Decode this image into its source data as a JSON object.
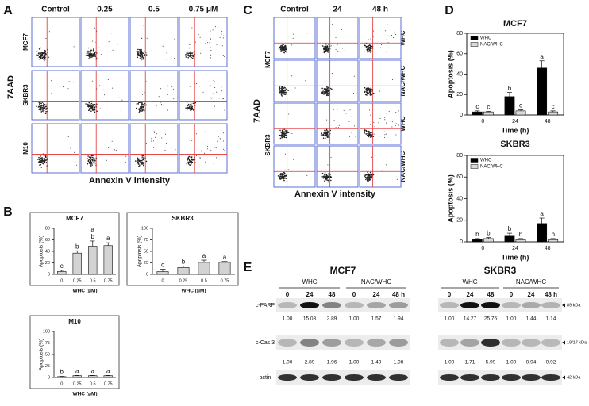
{
  "panel_labels": [
    "A",
    "B",
    "C",
    "D",
    "E"
  ],
  "flow_a": {
    "columns": [
      "Control",
      "0.25",
      "0.5",
      "0.75 μM"
    ],
    "rows": [
      "MCF7",
      "SKBR3",
      "M10"
    ],
    "y_label": "7AAD",
    "x_label": "Annexin V intensity"
  },
  "flow_c": {
    "columns": [
      "Control",
      "24",
      "48 h"
    ],
    "cell_lines": [
      "MCF7",
      "SKBR3"
    ],
    "treatments": [
      "WHC",
      "NAC/WHC",
      "WHC",
      "NAC/WHC"
    ],
    "y_label": "7AAD",
    "x_label": "Annexin V intensity"
  },
  "chart_data": [
    {
      "type": "bar",
      "title": "MCF7",
      "xlabel": "WHC (μM)",
      "ylabel": "Apoptosis (%)",
      "categories": [
        "0",
        "0.25",
        "0.5",
        "0.75"
      ],
      "values": [
        5,
        37,
        49,
        50
      ],
      "errors": [
        2,
        4,
        9,
        5
      ],
      "letters": [
        [
          "c"
        ],
        [
          "b"
        ],
        [
          "a",
          "b"
        ],
        [
          "a"
        ]
      ],
      "color": "#d3d3d3",
      "ylim": [
        0,
        80
      ],
      "yticks": [
        0,
        20,
        40,
        60,
        80
      ]
    },
    {
      "type": "bar",
      "title": "SKBR3",
      "xlabel": "WHC (μM)",
      "ylabel": "Apoptosis (%)",
      "categories": [
        "0",
        "0.25",
        "0.5",
        "0.75"
      ],
      "values": [
        6,
        15,
        26,
        26
      ],
      "errors": [
        5,
        3,
        5,
        2
      ],
      "letters": [
        [
          "c"
        ],
        [
          "b"
        ],
        [
          "a"
        ],
        [
          "a"
        ]
      ],
      "color": "#d3d3d3",
      "ylim": [
        0,
        100
      ],
      "yticks": [
        0,
        25,
        50,
        75,
        100
      ]
    },
    {
      "type": "bar",
      "title": "M10",
      "xlabel": "WHC (μM)",
      "ylabel": "Apoptosis (%)",
      "categories": [
        "0",
        "0.25",
        "0.5",
        "0.75"
      ],
      "values": [
        2,
        4,
        4,
        4
      ],
      "errors": [
        0.5,
        0.5,
        0.5,
        0.5
      ],
      "letters": [
        [
          "b"
        ],
        [
          "a"
        ],
        [
          "a"
        ],
        [
          "a"
        ]
      ],
      "color": "#d3d3d3",
      "ylim": [
        0,
        100
      ],
      "yticks": [
        0,
        25,
        50,
        75,
        100
      ]
    },
    {
      "type": "bar",
      "title": "MCF7",
      "xlabel": "Time (h)",
      "ylabel": "Apoptosis (%)",
      "categories": [
        "0",
        "24",
        "48"
      ],
      "series": [
        {
          "name": "WHC",
          "color": "#000000",
          "values": [
            3,
            18,
            46
          ],
          "errors": [
            1,
            4,
            7
          ],
          "letters": [
            "c",
            "b",
            "a"
          ]
        },
        {
          "name": "NAC/WHC",
          "color": "#d9d9d9",
          "values": [
            3,
            4,
            3
          ],
          "errors": [
            0.5,
            1,
            1
          ],
          "letters": [
            "c",
            "c",
            "c"
          ]
        }
      ],
      "ylim": [
        0,
        80
      ],
      "yticks": [
        0,
        20,
        40,
        60,
        80
      ],
      "legend": "upper left"
    },
    {
      "type": "bar",
      "title": "SKBR3",
      "xlabel": "Time (h)",
      "ylabel": "Apoptosis (%)",
      "categories": [
        "0",
        "24",
        "48"
      ],
      "series": [
        {
          "name": "WHC",
          "color": "#000000",
          "values": [
            2,
            6,
            17
          ],
          "errors": [
            1,
            2,
            5
          ],
          "letters": [
            "b",
            "b",
            "a"
          ]
        },
        {
          "name": "NAC/WHC",
          "color": "#d9d9d9",
          "values": [
            3,
            2,
            2
          ],
          "errors": [
            1,
            1,
            1
          ],
          "letters": [
            "b",
            "b",
            "b"
          ]
        }
      ],
      "ylim": [
        0,
        80
      ],
      "yticks": [
        0,
        20,
        40,
        60,
        80
      ],
      "legend": "upper left"
    }
  ],
  "western": {
    "proteins": [
      "c-PARP",
      "c-Cas 3",
      "actin"
    ],
    "markers": [
      "89 kDa",
      "19/17 kDa",
      "42 kDa"
    ],
    "blots": [
      {
        "cell_line": "MCF7",
        "groups": [
          "WHC",
          "NAC/WHC"
        ],
        "lanes": [
          "0",
          "24",
          "48",
          "0",
          "24",
          "48 h"
        ],
        "ratios": [
          [
            "1.00",
            "15.03",
            "2.89",
            "1.00",
            "1.57",
            "1.94"
          ],
          [
            "1.00",
            "2.89",
            "1.96",
            "1.00",
            "1.49",
            "1.98"
          ]
        ]
      },
      {
        "cell_line": "SKBR3",
        "groups": [
          "WHC",
          "NAC/WHC"
        ],
        "lanes": [
          "0",
          "24",
          "48",
          "0",
          "24",
          "48 h"
        ],
        "ratios": [
          [
            "1.00",
            "14.27",
            "25.76",
            "1.00",
            "1.44",
            "1.14"
          ],
          [
            "1.00",
            "1.71",
            "5.99",
            "1.00",
            "0.94",
            "0.92"
          ]
        ]
      }
    ]
  }
}
